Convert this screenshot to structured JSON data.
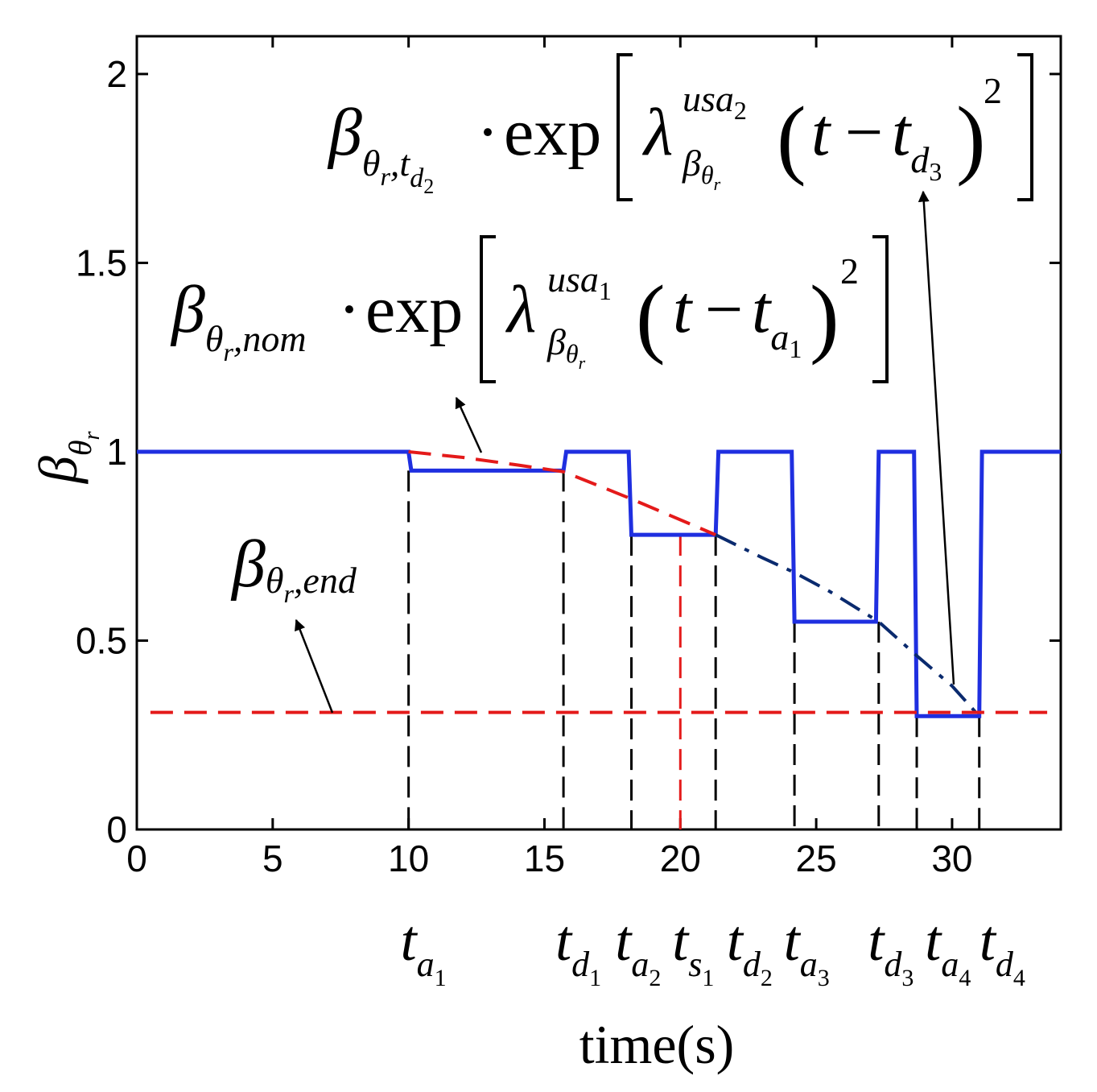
{
  "chart_data": {
    "type": "line",
    "xlabel": "time(s)",
    "ylabel": "β_{θ_r}",
    "xlim": [
      0,
      34
    ],
    "ylim": [
      0,
      2.1
    ],
    "x_ticks": [
      0,
      5,
      10,
      15,
      20,
      25,
      30
    ],
    "y_ticks": [
      0,
      0.5,
      1,
      1.5,
      2
    ],
    "y_tick_labels": [
      "0",
      "0.5",
      "1",
      "1.5",
      "2"
    ],
    "grid": false,
    "series": [
      {
        "color": "#1f2fe0",
        "style": "solid",
        "x": [
          0,
          10,
          10.1,
          15.7,
          15.8,
          18.1,
          18.2,
          21.3,
          21.4,
          24.1,
          24.2,
          27.2,
          27.3,
          28.6,
          28.7,
          31.0,
          31.1,
          34
        ],
        "y": [
          1.0,
          1.0,
          0.95,
          0.95,
          1.0,
          1.0,
          0.78,
          0.78,
          1.0,
          1.0,
          0.55,
          0.55,
          1.0,
          1.0,
          0.3,
          0.3,
          1.0,
          1.0
        ]
      },
      {
        "color": "#e41a1a",
        "style": "dashed",
        "x": [
          10,
          12,
          14,
          15.7,
          17,
          18.2,
          19.5,
          21.3
        ],
        "y": [
          1.0,
          0.985,
          0.965,
          0.947,
          0.91,
          0.875,
          0.835,
          0.78
        ]
      },
      {
        "color": "#0a2a6e",
        "style": "dash-dot",
        "x": [
          21.3,
          23,
          24.2,
          25.5,
          27.3,
          28.7,
          30,
          31.0
        ],
        "y": [
          0.78,
          0.72,
          0.68,
          0.63,
          0.55,
          0.46,
          0.38,
          0.3
        ]
      },
      {
        "color": "#e41a1a",
        "style": "dashed",
        "x": [
          0.5,
          33.5
        ],
        "y": [
          0.31,
          0.31
        ]
      }
    ],
    "vertical_markers": [
      {
        "x": 10.0,
        "top": 0.95,
        "color": "#000000"
      },
      {
        "x": 15.7,
        "top": 0.95,
        "color": "#000000"
      },
      {
        "x": 18.2,
        "top": 0.78,
        "color": "#000000"
      },
      {
        "x": 20.0,
        "top": 0.78,
        "color": "#e41a1a"
      },
      {
        "x": 21.3,
        "top": 0.78,
        "color": "#000000"
      },
      {
        "x": 24.2,
        "top": 0.55,
        "color": "#000000"
      },
      {
        "x": 27.3,
        "top": 0.55,
        "color": "#000000"
      },
      {
        "x": 28.7,
        "top": 0.3,
        "color": "#000000"
      },
      {
        "x": 31.0,
        "top": 0.3,
        "color": "#000000"
      }
    ],
    "time_markers": [
      {
        "x": 10.0,
        "base": "t",
        "sub": "a",
        "subsub": "1"
      },
      {
        "x": 15.7,
        "base": "t",
        "sub": "d",
        "subsub": "1"
      },
      {
        "x": 17.9,
        "base": "t",
        "sub": "a",
        "subsub": "2"
      },
      {
        "x": 20.0,
        "base": "t",
        "sub": "s",
        "subsub": "1"
      },
      {
        "x": 22.0,
        "base": "t",
        "sub": "d",
        "subsub": "2"
      },
      {
        "x": 24.1,
        "base": "t",
        "sub": "a",
        "subsub": "3"
      },
      {
        "x": 27.2,
        "base": "t",
        "sub": "d",
        "subsub": "3"
      },
      {
        "x": 29.3,
        "base": "t",
        "sub": "a",
        "subsub": "4"
      },
      {
        "x": 31.3,
        "base": "t",
        "sub": "d",
        "subsub": "4"
      }
    ],
    "annotations": [
      {
        "id": "formula-td2",
        "text": "β_{θ_r,t_{d_2}} · exp[ λ^{usa_2}_{β_{θ_r}} (t − t_{d_3})^2 ]",
        "arrow_to": [
          30.2,
          0.38
        ]
      },
      {
        "id": "formula-nom",
        "text": "β_{θ_r,nom} · exp[ λ^{usa_1}_{β_{θ_r}} (t − t_{a_1})^2 ]",
        "arrow_to": [
          12.6,
          0.99
        ]
      },
      {
        "id": "label-end",
        "text": "β_{θ_r,end}",
        "arrow_to": [
          7.2,
          0.31
        ]
      }
    ],
    "text": {
      "exp": "exp",
      "dot": "·",
      "minus": "−",
      "t": "t",
      "square": "2",
      "beta": "β",
      "theta": "θ",
      "lambda": "λ",
      "r": "r",
      "comma": ",",
      "nom": "nom",
      "end": "end",
      "usa": "usa",
      "one": "1",
      "two": "2",
      "three": "3",
      "a": "a",
      "d": "d"
    }
  }
}
